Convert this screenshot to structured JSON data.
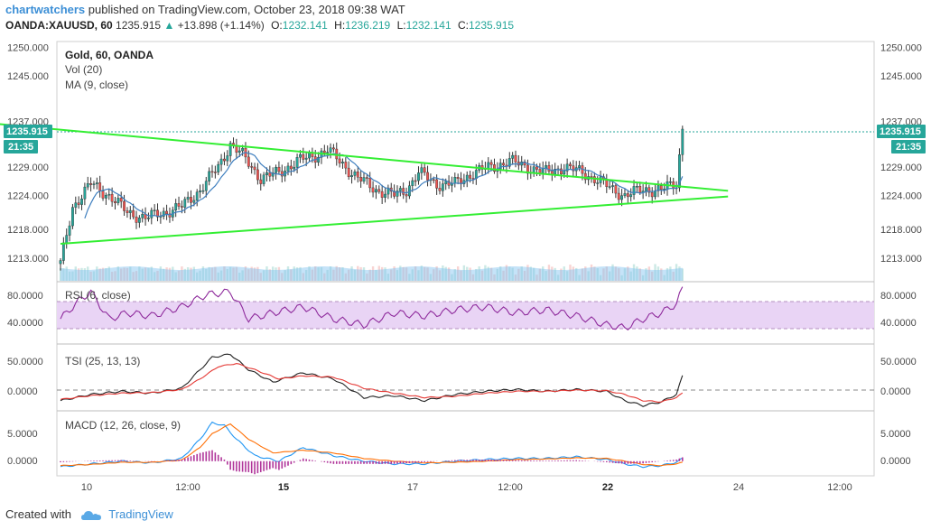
{
  "header": {
    "author": "chartwatchers",
    "published_text": " published on TradingView.com, October 23, 2018 09:38 WAT",
    "symbol": "OANDA:XAUUSD, 60",
    "last": "1235.915",
    "change": "+13.898 (+1.14%)",
    "o_label": "O:",
    "o_value": "1232.141",
    "h_label": "H:",
    "h_value": "1236.219",
    "l_label": "L:",
    "l_value": "1232.141",
    "c_label": "C:",
    "c_value": "1235.915"
  },
  "footer": {
    "created_with": "Created with",
    "brand": "TradingView"
  },
  "legends": {
    "main_title": "Gold, 60, OANDA",
    "vol": "Vol (20)",
    "ma": "MA (9, close)",
    "rsi": "RSI (6, close)",
    "tsi": "TSI (25, 13, 13)",
    "macd": "MACD (12, 26, close, 9)"
  },
  "colors": {
    "up": "#26a69a",
    "down": "#ef5350",
    "trendline": "#33ee33",
    "ma": "#3f7fbf",
    "rsi": "#8e2a9c",
    "rsi_band": "#e9d4f5",
    "tsi_main": "#222222",
    "tsi_signal": "#e53935",
    "macd": "#2196f3",
    "macd_signal": "#ff6d00",
    "hist": "#b0359a",
    "price_tag": "#26a69a"
  },
  "chart_data": {
    "type": "candlestick",
    "symbol": "XAUUSD",
    "timeframe": "60",
    "price_axis": {
      "ticks": [
        "1250.000",
        "1245.000",
        "1237.000",
        "1229.000",
        "1224.000",
        "1218.000",
        "1213.000"
      ],
      "ylim": [
        1209,
        1251
      ]
    },
    "last_price_tag": "1235.915",
    "time_to_close": "21:35",
    "time_axis": {
      "ticks": [
        "10",
        "12:00",
        "15",
        "17",
        "12:00",
        "22",
        "24",
        "12:00"
      ],
      "bold": [
        "15",
        "22"
      ]
    },
    "candles_path": [
      [
        0,
        1212
      ],
      [
        4,
        1222
      ],
      [
        10,
        1226
      ],
      [
        16,
        1224
      ],
      [
        22,
        1221
      ],
      [
        28,
        1220
      ],
      [
        34,
        1221
      ],
      [
        40,
        1222
      ],
      [
        46,
        1225
      ],
      [
        52,
        1229
      ],
      [
        56,
        1233
      ],
      [
        60,
        1231
      ],
      [
        66,
        1227
      ],
      [
        72,
        1228
      ],
      [
        78,
        1230
      ],
      [
        84,
        1231
      ],
      [
        88,
        1232
      ],
      [
        92,
        1230
      ],
      [
        98,
        1227
      ],
      [
        104,
        1225
      ],
      [
        110,
        1224
      ],
      [
        114,
        1225
      ],
      [
        118,
        1228
      ],
      [
        124,
        1226
      ],
      [
        130,
        1226
      ],
      [
        136,
        1228
      ],
      [
        142,
        1229
      ],
      [
        148,
        1230
      ],
      [
        154,
        1229
      ],
      [
        160,
        1228
      ],
      [
        166,
        1229
      ],
      [
        172,
        1228
      ],
      [
        176,
        1227
      ],
      [
        182,
        1225
      ],
      [
        186,
        1224
      ],
      [
        192,
        1225
      ],
      [
        198,
        1225
      ],
      [
        203,
        1226
      ],
      [
        204,
        1231
      ],
      [
        205,
        1236
      ]
    ],
    "trendlines": [
      {
        "name": "upper",
        "from": [
          -20,
          1236.5
        ],
        "to": [
          220,
          1224.8
        ]
      },
      {
        "name": "lower",
        "from": [
          0,
          1215.5
        ],
        "to": [
          220,
          1223.8
        ]
      }
    ],
    "rsi": {
      "ticks": [
        "80.0000",
        "40.0000"
      ],
      "ylim": [
        0,
        100
      ],
      "bands": [
        30,
        70
      ],
      "path": [
        [
          0,
          40
        ],
        [
          6,
          70
        ],
        [
          10,
          85
        ],
        [
          16,
          40
        ],
        [
          22,
          50
        ],
        [
          30,
          45
        ],
        [
          40,
          60
        ],
        [
          48,
          80
        ],
        [
          56,
          85
        ],
        [
          62,
          40
        ],
        [
          70,
          50
        ],
        [
          80,
          60
        ],
        [
          90,
          40
        ],
        [
          100,
          30
        ],
        [
          110,
          50
        ],
        [
          120,
          45
        ],
        [
          130,
          55
        ],
        [
          140,
          60
        ],
        [
          150,
          50
        ],
        [
          160,
          55
        ],
        [
          170,
          45
        ],
        [
          180,
          30
        ],
        [
          186,
          25
        ],
        [
          192,
          40
        ],
        [
          198,
          50
        ],
        [
          203,
          65
        ],
        [
          205,
          90
        ]
      ]
    },
    "tsi": {
      "ticks": [
        "50.0000",
        "0.0000"
      ],
      "ylim": [
        -25,
        80
      ],
      "main": [
        [
          0,
          -10
        ],
        [
          10,
          0
        ],
        [
          20,
          5
        ],
        [
          30,
          2
        ],
        [
          40,
          10
        ],
        [
          46,
          40
        ],
        [
          50,
          60
        ],
        [
          56,
          65
        ],
        [
          62,
          40
        ],
        [
          70,
          20
        ],
        [
          80,
          35
        ],
        [
          90,
          25
        ],
        [
          100,
          -5
        ],
        [
          110,
          -2
        ],
        [
          120,
          -10
        ],
        [
          130,
          0
        ],
        [
          140,
          5
        ],
        [
          150,
          8
        ],
        [
          160,
          5
        ],
        [
          170,
          8
        ],
        [
          180,
          5
        ],
        [
          186,
          -10
        ],
        [
          192,
          -18
        ],
        [
          198,
          -12
        ],
        [
          203,
          0
        ],
        [
          205,
          30
        ]
      ],
      "signal": [
        [
          0,
          -8
        ],
        [
          10,
          -2
        ],
        [
          20,
          2
        ],
        [
          30,
          3
        ],
        [
          40,
          8
        ],
        [
          46,
          25
        ],
        [
          52,
          45
        ],
        [
          58,
          50
        ],
        [
          64,
          40
        ],
        [
          72,
          25
        ],
        [
          80,
          30
        ],
        [
          90,
          28
        ],
        [
          100,
          10
        ],
        [
          110,
          2
        ],
        [
          120,
          -5
        ],
        [
          130,
          -3
        ],
        [
          140,
          2
        ],
        [
          150,
          5
        ],
        [
          160,
          5
        ],
        [
          170,
          7
        ],
        [
          180,
          6
        ],
        [
          186,
          0
        ],
        [
          192,
          -10
        ],
        [
          198,
          -12
        ],
        [
          203,
          -5
        ],
        [
          205,
          2
        ]
      ]
    },
    "macd": {
      "ticks": [
        "5.0000",
        "0.0000"
      ],
      "ylim": [
        -2.5,
        9
      ],
      "macd": [
        [
          0,
          -1
        ],
        [
          10,
          -0.5
        ],
        [
          20,
          0
        ],
        [
          30,
          -0.3
        ],
        [
          40,
          0.5
        ],
        [
          46,
          4
        ],
        [
          50,
          7
        ],
        [
          54,
          6.5
        ],
        [
          58,
          4
        ],
        [
          64,
          1
        ],
        [
          72,
          0
        ],
        [
          80,
          2.5
        ],
        [
          90,
          1
        ],
        [
          100,
          0
        ],
        [
          110,
          -0.5
        ],
        [
          120,
          -0.5
        ],
        [
          130,
          0
        ],
        [
          140,
          0.3
        ],
        [
          150,
          0.5
        ],
        [
          160,
          0.5
        ],
        [
          170,
          0.8
        ],
        [
          180,
          0.3
        ],
        [
          186,
          -0.5
        ],
        [
          192,
          -1
        ],
        [
          198,
          -0.8
        ],
        [
          203,
          -0.2
        ],
        [
          205,
          0.5
        ]
      ],
      "signal": [
        [
          0,
          -0.8
        ],
        [
          10,
          -0.6
        ],
        [
          20,
          -0.2
        ],
        [
          30,
          -0.2
        ],
        [
          40,
          0.2
        ],
        [
          46,
          2.5
        ],
        [
          50,
          5
        ],
        [
          56,
          6.8
        ],
        [
          62,
          4
        ],
        [
          70,
          1.5
        ],
        [
          80,
          2
        ],
        [
          90,
          1.5
        ],
        [
          100,
          0.5
        ],
        [
          110,
          0
        ],
        [
          120,
          -0.3
        ],
        [
          130,
          -0.2
        ],
        [
          140,
          0
        ],
        [
          150,
          0.3
        ],
        [
          160,
          0.4
        ],
        [
          170,
          0.6
        ],
        [
          180,
          0.5
        ],
        [
          186,
          0
        ],
        [
          192,
          -0.6
        ],
        [
          198,
          -0.8
        ],
        [
          203,
          -0.5
        ],
        [
          205,
          -0.2
        ]
      ]
    },
    "volume": {
      "note": "volume bars along bottom of price pane"
    }
  }
}
